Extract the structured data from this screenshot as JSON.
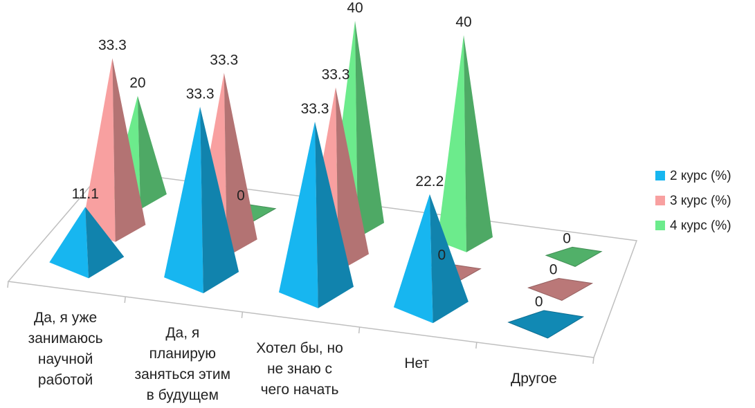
{
  "chart_data": {
    "type": "bar",
    "categories": [
      [
        "Да, я уже",
        "занимаюсь",
        "научной",
        "работой"
      ],
      [
        "Да, я",
        "планирую",
        "заняться этим",
        "в будущем"
      ],
      [
        "Хотел бы, но",
        "не знаю с",
        "чего начать"
      ],
      [
        "Нет"
      ],
      [
        "Другое"
      ]
    ],
    "series": [
      {
        "name": "2 курс (%)",
        "values": [
          11.1,
          33.3,
          33.3,
          22.2,
          0
        ],
        "color": "#17b6f0"
      },
      {
        "name": "3 курс (%)",
        "values": [
          33.3,
          33.3,
          33.3,
          0,
          0
        ],
        "color": "#f8a0a0"
      },
      {
        "name": "4 курс (%)",
        "values": [
          20,
          0,
          40,
          40,
          0
        ],
        "color": "#6ceb8c"
      }
    ],
    "value_labels": [
      [
        "11.1",
        "33.3",
        "33.3",
        "22.2",
        "0"
      ],
      [
        "33.3",
        "33.3",
        "33.3",
        "0",
        "0"
      ],
      [
        "20",
        "0",
        "40",
        "40",
        "0"
      ]
    ],
    "ylim": [
      0,
      40
    ],
    "grid": false,
    "legend_position": "right",
    "shape": "pyramid-3d"
  }
}
